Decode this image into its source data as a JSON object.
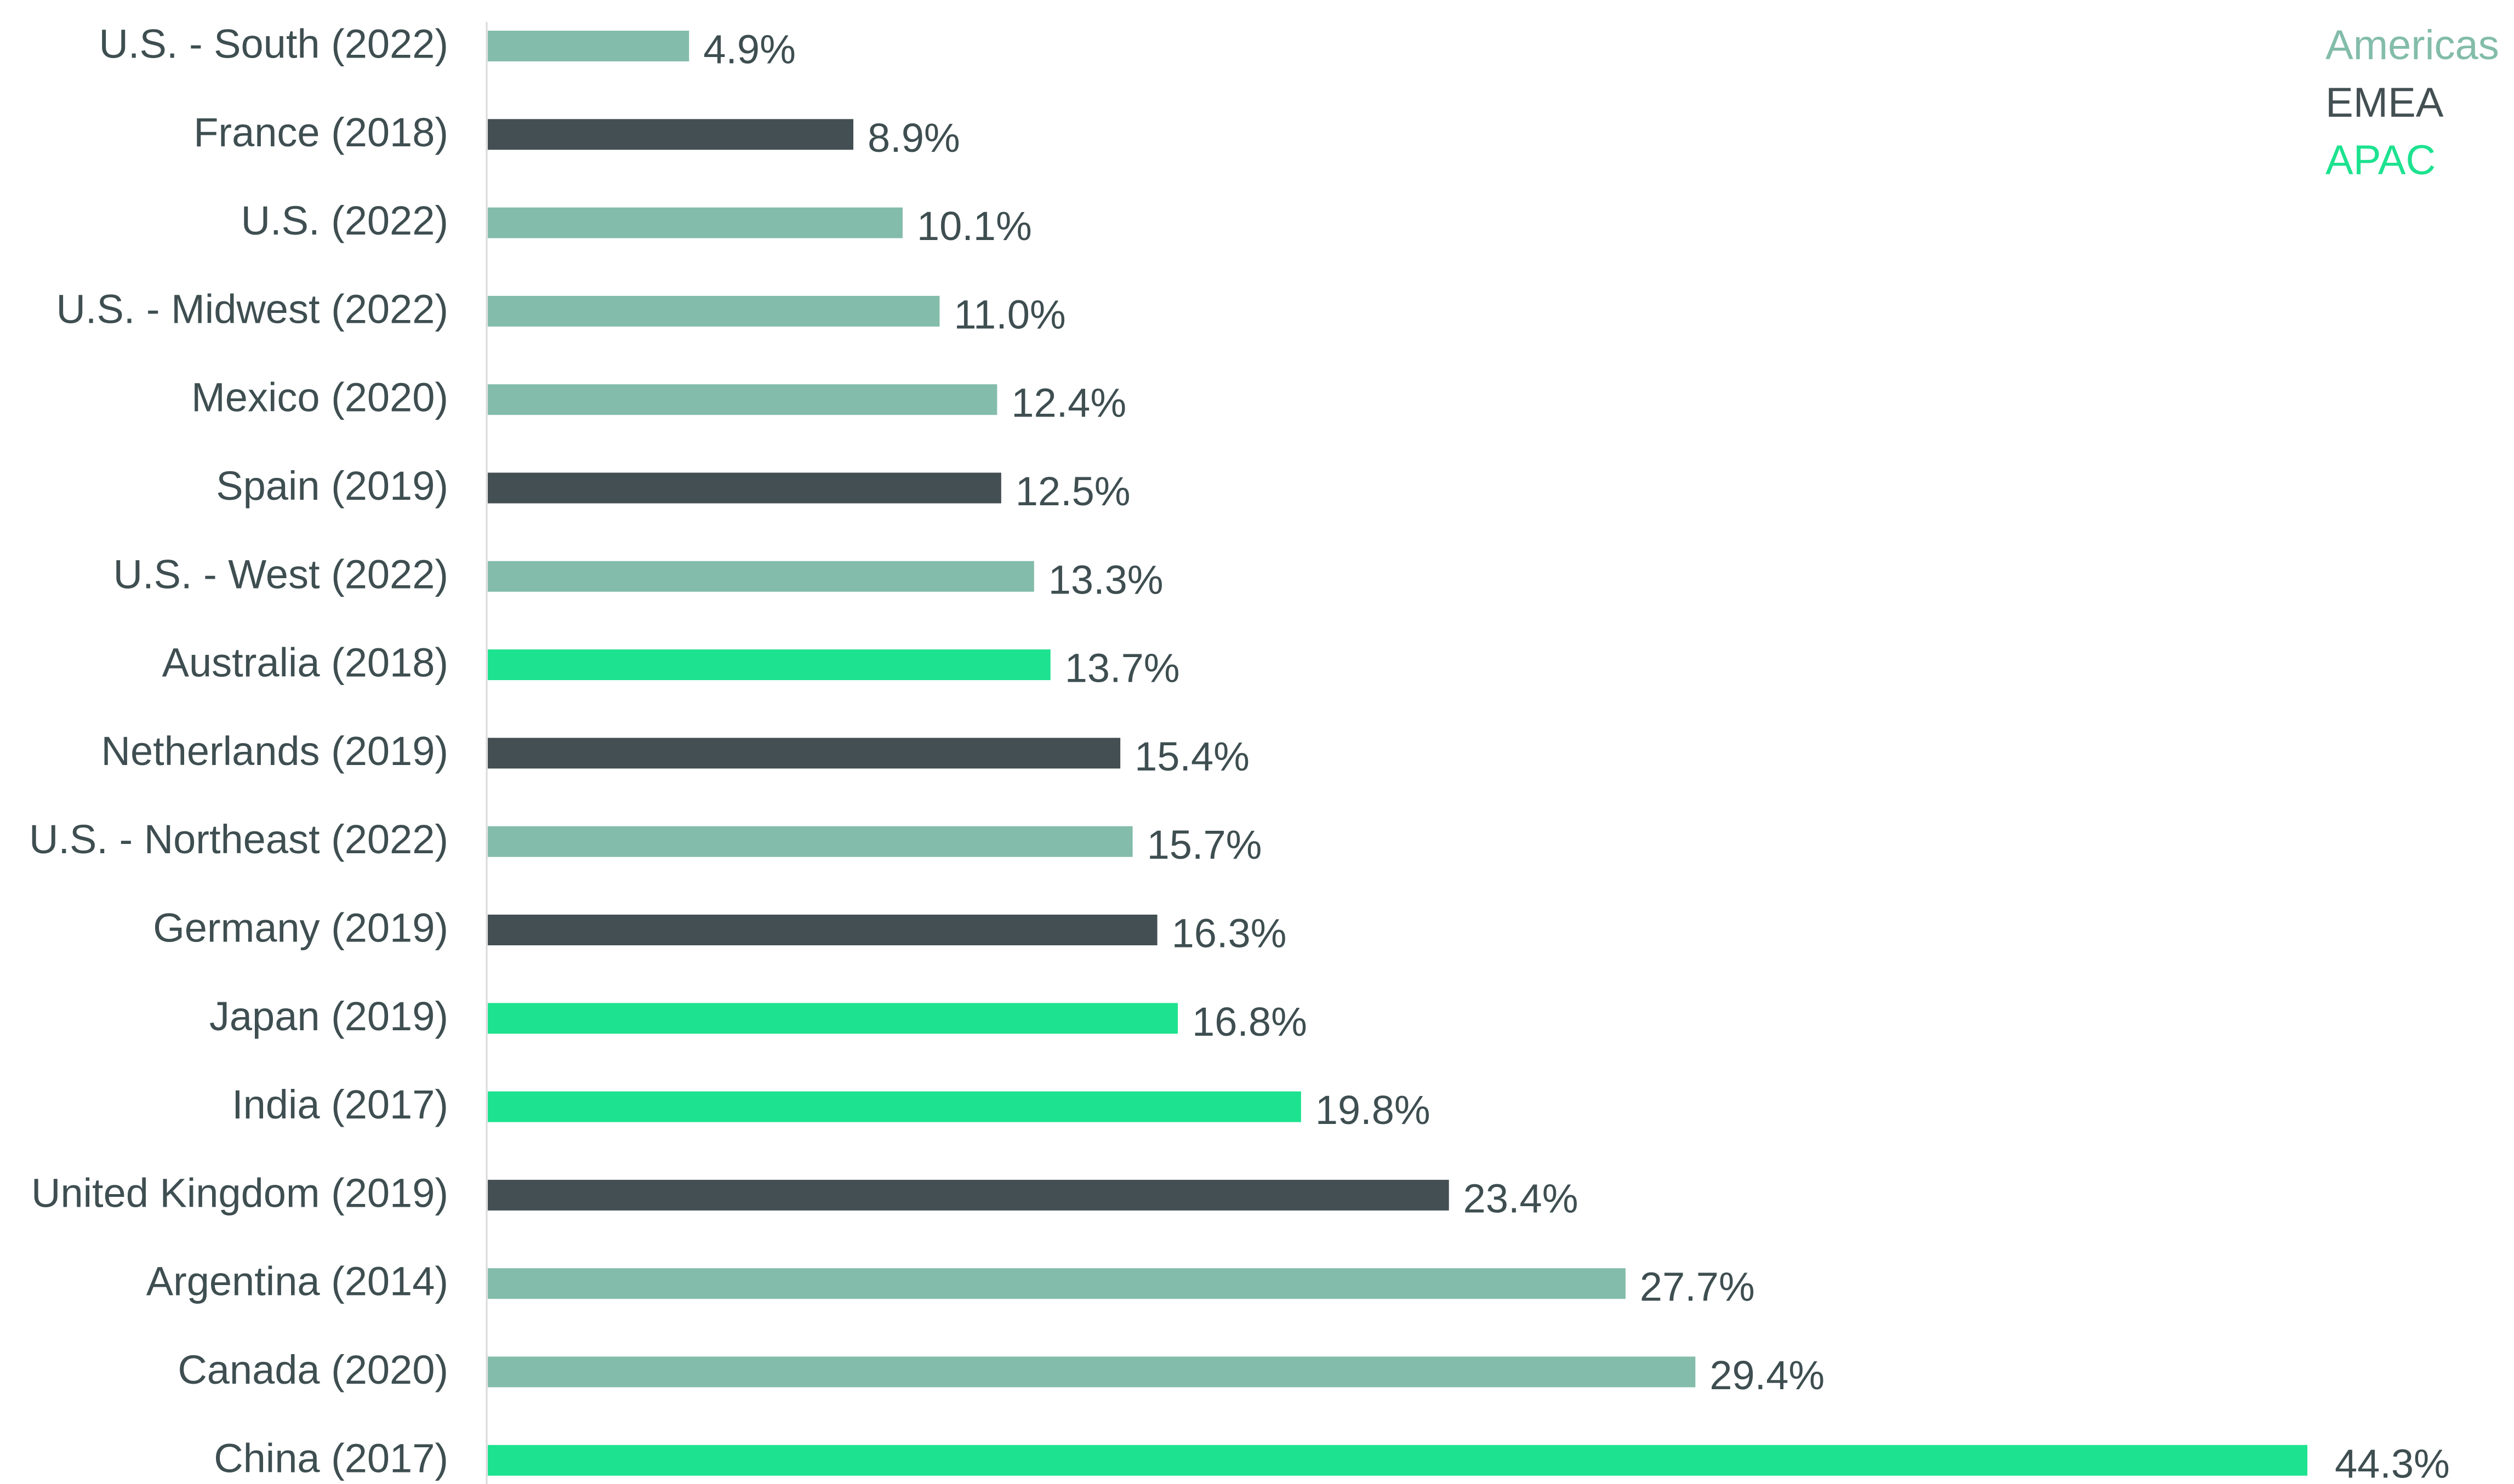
{
  "chart_data": {
    "type": "bar",
    "orientation": "horizontal",
    "categories": [
      "U.S. - South (2022)",
      "France (2018)",
      "U.S. (2022)",
      "U.S. - Midwest (2022)",
      "Mexico (2020)",
      "Spain (2019)",
      "U.S. - West (2022)",
      "Australia (2018)",
      "Netherlands (2019)",
      "U.S. - Northeast (2022)",
      "Germany (2019)",
      "Japan (2019)",
      "India (2017)",
      "United Kingdom (2019)",
      "Argentina (2014)",
      "Canada (2020)",
      "China (2017)"
    ],
    "values": [
      4.9,
      8.9,
      10.1,
      11.0,
      12.4,
      12.5,
      13.3,
      13.7,
      15.4,
      15.7,
      16.3,
      16.8,
      19.8,
      23.4,
      27.7,
      29.4,
      44.3
    ],
    "value_labels": [
      "4.9%",
      "8.9%",
      "10.1%",
      "11.0%",
      "12.4%",
      "12.5%",
      "13.3%",
      "13.7%",
      "15.4%",
      "15.7%",
      "16.3%",
      "16.8%",
      "19.8%",
      "23.4%",
      "27.7%",
      "29.4%",
      "44.3%"
    ],
    "groups": [
      "Americas",
      "EMEA",
      "Americas",
      "Americas",
      "Americas",
      "EMEA",
      "Americas",
      "APAC",
      "EMEA",
      "Americas",
      "EMEA",
      "APAC",
      "APAC",
      "EMEA",
      "Americas",
      "Americas",
      "APAC"
    ],
    "legend": [
      {
        "name": "Americas",
        "color": "#83bcaa"
      },
      {
        "name": "EMEA",
        "color": "#434f52"
      },
      {
        "name": "APAC",
        "color": "#1de28f"
      }
    ],
    "legend_position": "top-right",
    "xlim": [
      0,
      44.3
    ],
    "grid": false,
    "title": "",
    "xlabel": "",
    "ylabel": ""
  }
}
